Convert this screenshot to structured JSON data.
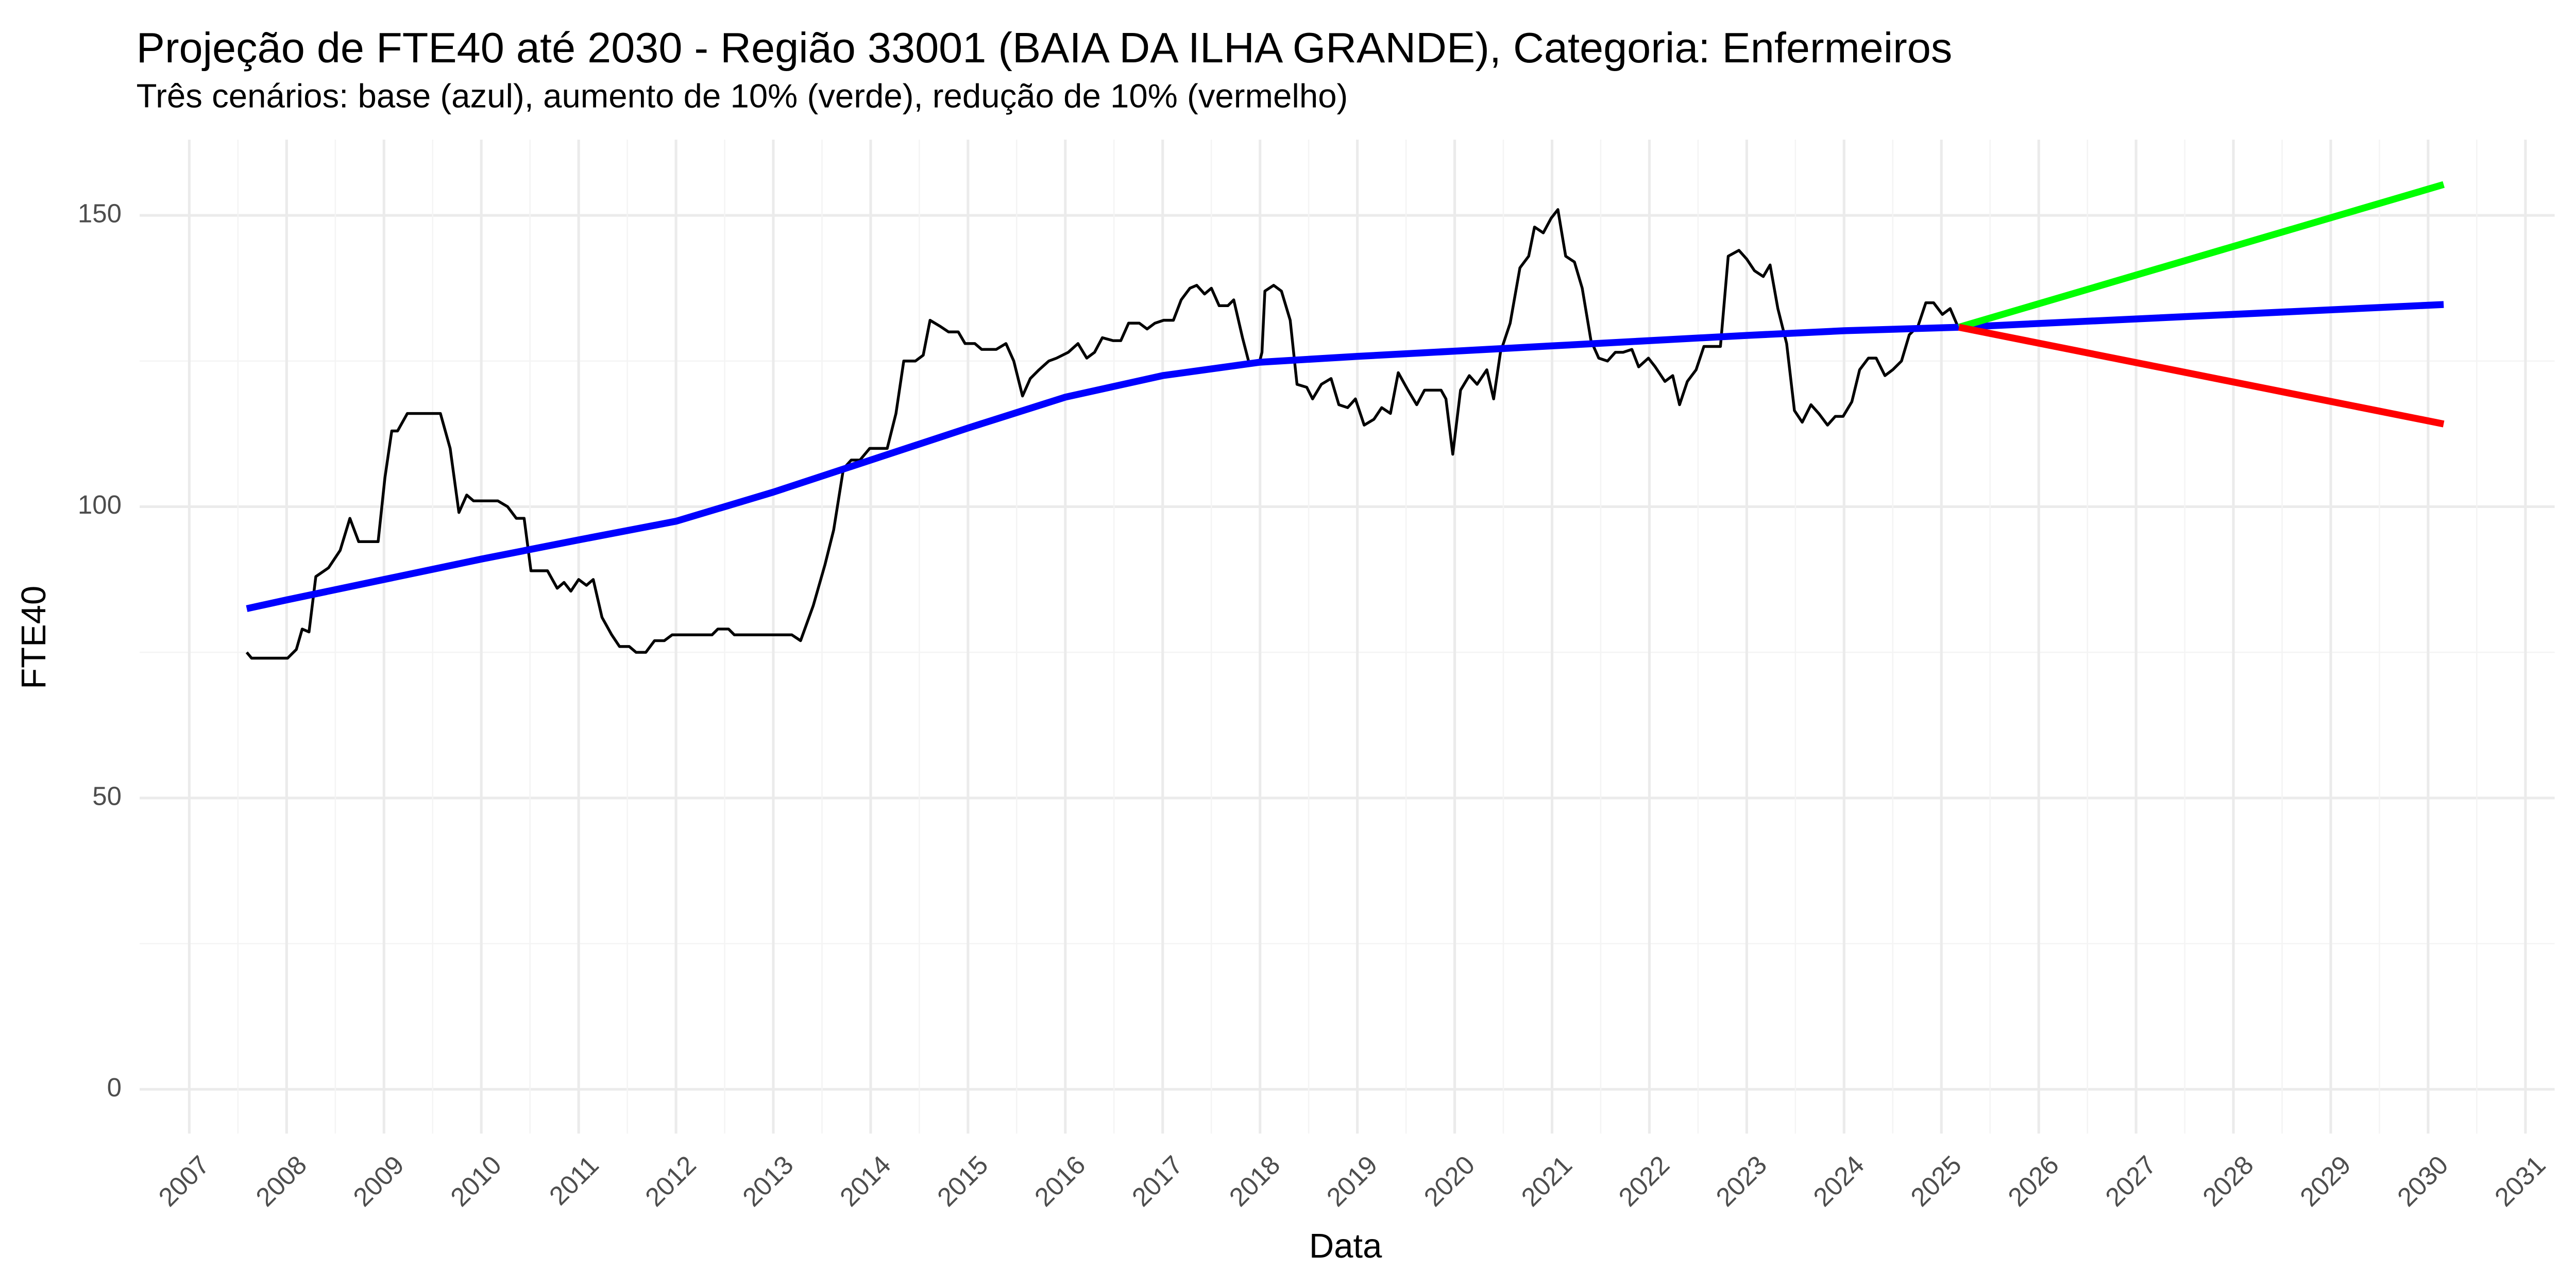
{
  "chart_data": {
    "type": "line",
    "title": "Projeção de FTE40 até 2030 - Região 33001 (BAIA DA ILHA GRANDE), Categoria: Enfermeiros",
    "subtitle": "Três cenários: base (azul), aumento de 10% (verde), redução de 10% (vermelho)",
    "x_label": "Data",
    "y_label": "FTE40",
    "xlim": [
      2006.49,
      2031.3
    ],
    "xticks": [
      2007,
      2008,
      2009,
      2010,
      2011,
      2012,
      2013,
      2014,
      2015,
      2016,
      2017,
      2018,
      2019,
      2020,
      2021,
      2022,
      2023,
      2024,
      2025,
      2026,
      2027,
      2028,
      2029,
      2030,
      2031
    ],
    "ylim": [
      -7.6,
      163
    ],
    "yticks": [
      0,
      50,
      100,
      150
    ],
    "grid": true,
    "series": [
      {
        "color": "#000000",
        "x": [
          2007.59,
          2007.64,
          2008.01,
          2008.1,
          2008.16,
          2008.23,
          2008.3,
          2008.43,
          2008.55,
          2008.65,
          2008.74,
          2008.94,
          2009.01,
          2009.08,
          2009.14,
          2009.24,
          2009.58,
          2009.68,
          2009.77,
          2009.85,
          2009.92,
          2010.17,
          2010.27,
          2010.36,
          2010.44,
          2010.51,
          2010.68,
          2010.78,
          2010.85,
          2010.92,
          2011.0,
          2011.08,
          2011.15,
          2011.24,
          2011.34,
          2011.42,
          2011.52,
          2011.59,
          2011.69,
          2011.78,
          2011.88,
          2011.96,
          2012.37,
          2012.43,
          2012.54,
          2012.6,
          2013.19,
          2013.28,
          2013.41,
          2013.53,
          2013.62,
          2013.72,
          2013.8,
          2013.89,
          2013.99,
          2014.17,
          2014.26,
          2014.34,
          2014.46,
          2014.54,
          2014.61,
          2014.71,
          2014.8,
          2014.9,
          2014.97,
          2015.07,
          2015.14,
          2015.29,
          2015.39,
          2015.47,
          2015.56,
          2015.64,
          2015.73,
          2015.83,
          2015.91,
          2016.03,
          2016.13,
          2016.22,
          2016.3,
          2016.38,
          2016.49,
          2016.57,
          2016.65,
          2016.76,
          2016.84,
          2016.92,
          2017.01,
          2017.11,
          2017.19,
          2017.28,
          2017.35,
          2017.43,
          2017.5,
          2017.58,
          2017.67,
          2017.73,
          2017.82,
          2017.89,
          2017.99,
          2018.02,
          2018.05,
          2018.14,
          2018.22,
          2018.31,
          2018.38,
          2018.48,
          2018.54,
          2018.63,
          2018.73,
          2018.81,
          2018.9,
          2018.98,
          2019.07,
          2019.17,
          2019.25,
          2019.34,
          2019.42,
          2019.52,
          2019.61,
          2019.69,
          2019.78,
          2019.86,
          2019.91,
          2019.98,
          2020.06,
          2020.15,
          2020.23,
          2020.33,
          2020.4,
          2020.47,
          2020.57,
          2020.67,
          2020.76,
          2020.82,
          2020.91,
          2020.99,
          2021.06,
          2021.14,
          2021.23,
          2021.31,
          2021.4,
          2021.48,
          2021.57,
          2021.65,
          2021.73,
          2021.82,
          2021.89,
          2021.99,
          2022.06,
          2022.16,
          2022.24,
          2022.31,
          2022.39,
          2022.48,
          2022.56,
          2022.73,
          2022.81,
          2022.92,
          2023.0,
          2023.08,
          2023.17,
          2023.24,
          2023.32,
          2023.41,
          2023.49,
          2023.57,
          2023.66,
          2023.74,
          2023.83,
          2023.91,
          2023.99,
          2024.08,
          2024.16,
          2024.25,
          2024.33,
          2024.42,
          2024.5,
          2024.59,
          2024.67,
          2024.76,
          2024.84,
          2024.92,
          2025.01,
          2025.09,
          2025.18
        ],
        "values": [
          75,
          74,
          74,
          75.5,
          79,
          78.5,
          88,
          89.5,
          92.5,
          98,
          94,
          94,
          105,
          113,
          113,
          116,
          116,
          110,
          99,
          102,
          101,
          101,
          100,
          98,
          98,
          89,
          89,
          86,
          87,
          85.5,
          87.5,
          86.5,
          87.5,
          81,
          78,
          76,
          76,
          75,
          75,
          77,
          77,
          78,
          78,
          79,
          79,
          78,
          78,
          77,
          83,
          90,
          96,
          106.5,
          108,
          108,
          110,
          110,
          116,
          125,
          125,
          126,
          132,
          131,
          130,
          130,
          128,
          128,
          127,
          127,
          128,
          125,
          119,
          122,
          123.5,
          125,
          125.5,
          126.5,
          128,
          125.5,
          126.5,
          129,
          128.5,
          128.5,
          131.5,
          131.5,
          130.5,
          131.5,
          132,
          132,
          135.5,
          137.5,
          138,
          136.5,
          137.5,
          134.5,
          134.5,
          135.5,
          129,
          124.5,
          124.5,
          126.5,
          137,
          138,
          137,
          132,
          121,
          120.5,
          118.5,
          121,
          122,
          117.5,
          117,
          118.5,
          114,
          115,
          117,
          116,
          123,
          120,
          117.5,
          120,
          120,
          120,
          118.5,
          109,
          120,
          122.5,
          121,
          123.5,
          118.5,
          126.5,
          131.5,
          141,
          143,
          148,
          147,
          149.5,
          151,
          143,
          142,
          137.5,
          128.5,
          125.5,
          125,
          126.5,
          126.5,
          127,
          124,
          125.5,
          124,
          121.5,
          122.5,
          117.5,
          121.5,
          123.5,
          127.5,
          127.5,
          143,
          144,
          142.5,
          140.5,
          139.5,
          141.5,
          134,
          128,
          116.5,
          114.5,
          117.5,
          116,
          114,
          115.5,
          115.5,
          118,
          123.5,
          125.5,
          125.5,
          122.5,
          123.5,
          125,
          129.5,
          131,
          135,
          135,
          133,
          134,
          130.5
        ]
      },
      {
        "color": "#0000ff",
        "x": [
          2007.59,
          2008,
          2009,
          2010,
          2011,
          2012,
          2013,
          2014,
          2015,
          2016,
          2017,
          2018,
          2019,
          2020,
          2021,
          2022,
          2023,
          2024,
          2025.18,
          2030.16
        ],
        "values": [
          82.5,
          84,
          87.5,
          91,
          94.3,
          97.5,
          102.5,
          108,
          113.5,
          118.8,
          122.5,
          124.8,
          125.8,
          126.7,
          127.6,
          128.5,
          129.4,
          130.2,
          130.8,
          134.7
        ]
      },
      {
        "color": "#00ff00",
        "x": [
          2025.18,
          2030.16
        ],
        "values": [
          130.8,
          155.3
        ]
      },
      {
        "color": "#ff0000",
        "x": [
          2025.18,
          2030.16
        ],
        "values": [
          130.8,
          114.2
        ]
      }
    ]
  }
}
